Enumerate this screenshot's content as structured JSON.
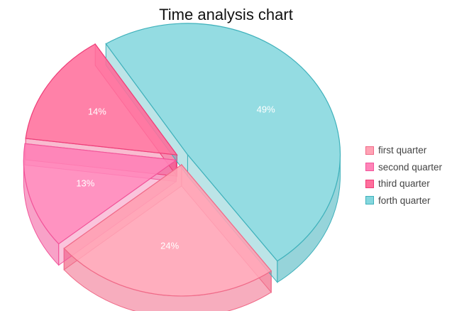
{
  "chart_data": {
    "type": "pie",
    "title": "Time analysis chart",
    "slices": [
      {
        "name": "first quarter",
        "value": 24,
        "label": "24%",
        "color": "#FFA3B5",
        "edge": "#F06A88"
      },
      {
        "name": "second quarter",
        "value": 13,
        "label": "13%",
        "color": "#FF84B8",
        "edge": "#F2559A"
      },
      {
        "name": "third quarter",
        "value": 14,
        "label": "14%",
        "color": "#FF6F9C",
        "edge": "#EE3D78"
      },
      {
        "name": "forth quarter",
        "value": 49,
        "label": "49%",
        "color": "#85D7DE",
        "edge": "#3FB1BB"
      }
    ],
    "legend_position": "right",
    "style": "3d-exploded"
  }
}
